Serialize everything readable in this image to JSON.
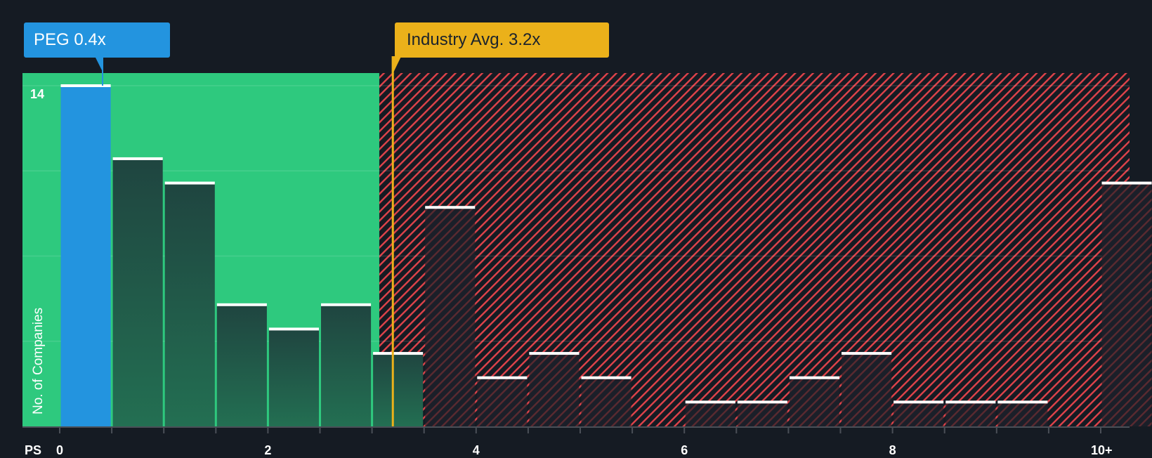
{
  "callouts": {
    "company": "PEG 0.4x",
    "industry": "Industry Avg. 3.2x"
  },
  "axis": {
    "x_prefix": "PS",
    "y_title": "No. of Companies",
    "y_top_label": "14",
    "x_ticks": [
      "0",
      "2",
      "4",
      "6",
      "8",
      "10+"
    ]
  },
  "colors": {
    "background": "#151b23",
    "good_zone": "#2ec97e",
    "bad_hatch": "#e0434a",
    "company_bar": "#2394df",
    "industry_line": "#ebb11a",
    "bar_dark": "#1f4a3f"
  },
  "chart_data": {
    "type": "bar",
    "title": "",
    "xlabel": "PS",
    "ylabel": "No. of Companies",
    "ylim": [
      0,
      14
    ],
    "grid": true,
    "categories": [
      "0-0.5",
      "0.5-1",
      "1-1.5",
      "1.5-2",
      "2-2.5",
      "2.5-3",
      "3-3.5",
      "3.5-4",
      "4-4.5",
      "4.5-5",
      "5-5.5",
      "5.5-6",
      "6-6.5",
      "6.5-7",
      "7-7.5",
      "7.5-8",
      "8-8.5",
      "8.5-9",
      "9-9.5",
      "9.5-10",
      "10+"
    ],
    "values": [
      14,
      11,
      10,
      5,
      4,
      5,
      3,
      9,
      2,
      3,
      2,
      0,
      1,
      1,
      2,
      3,
      1,
      1,
      1,
      0,
      10
    ],
    "x_tick_labels": [
      "0",
      "2",
      "4",
      "6",
      "8",
      "10+"
    ],
    "annotations": [
      {
        "label": "PEG 0.4x",
        "x": 0.4,
        "color": "#2394df"
      },
      {
        "label": "Industry Avg. 3.2x",
        "x": 3.2,
        "color": "#ebb11a"
      }
    ],
    "highlight_bin": 0,
    "good_zone_max_x": 3.07
  }
}
